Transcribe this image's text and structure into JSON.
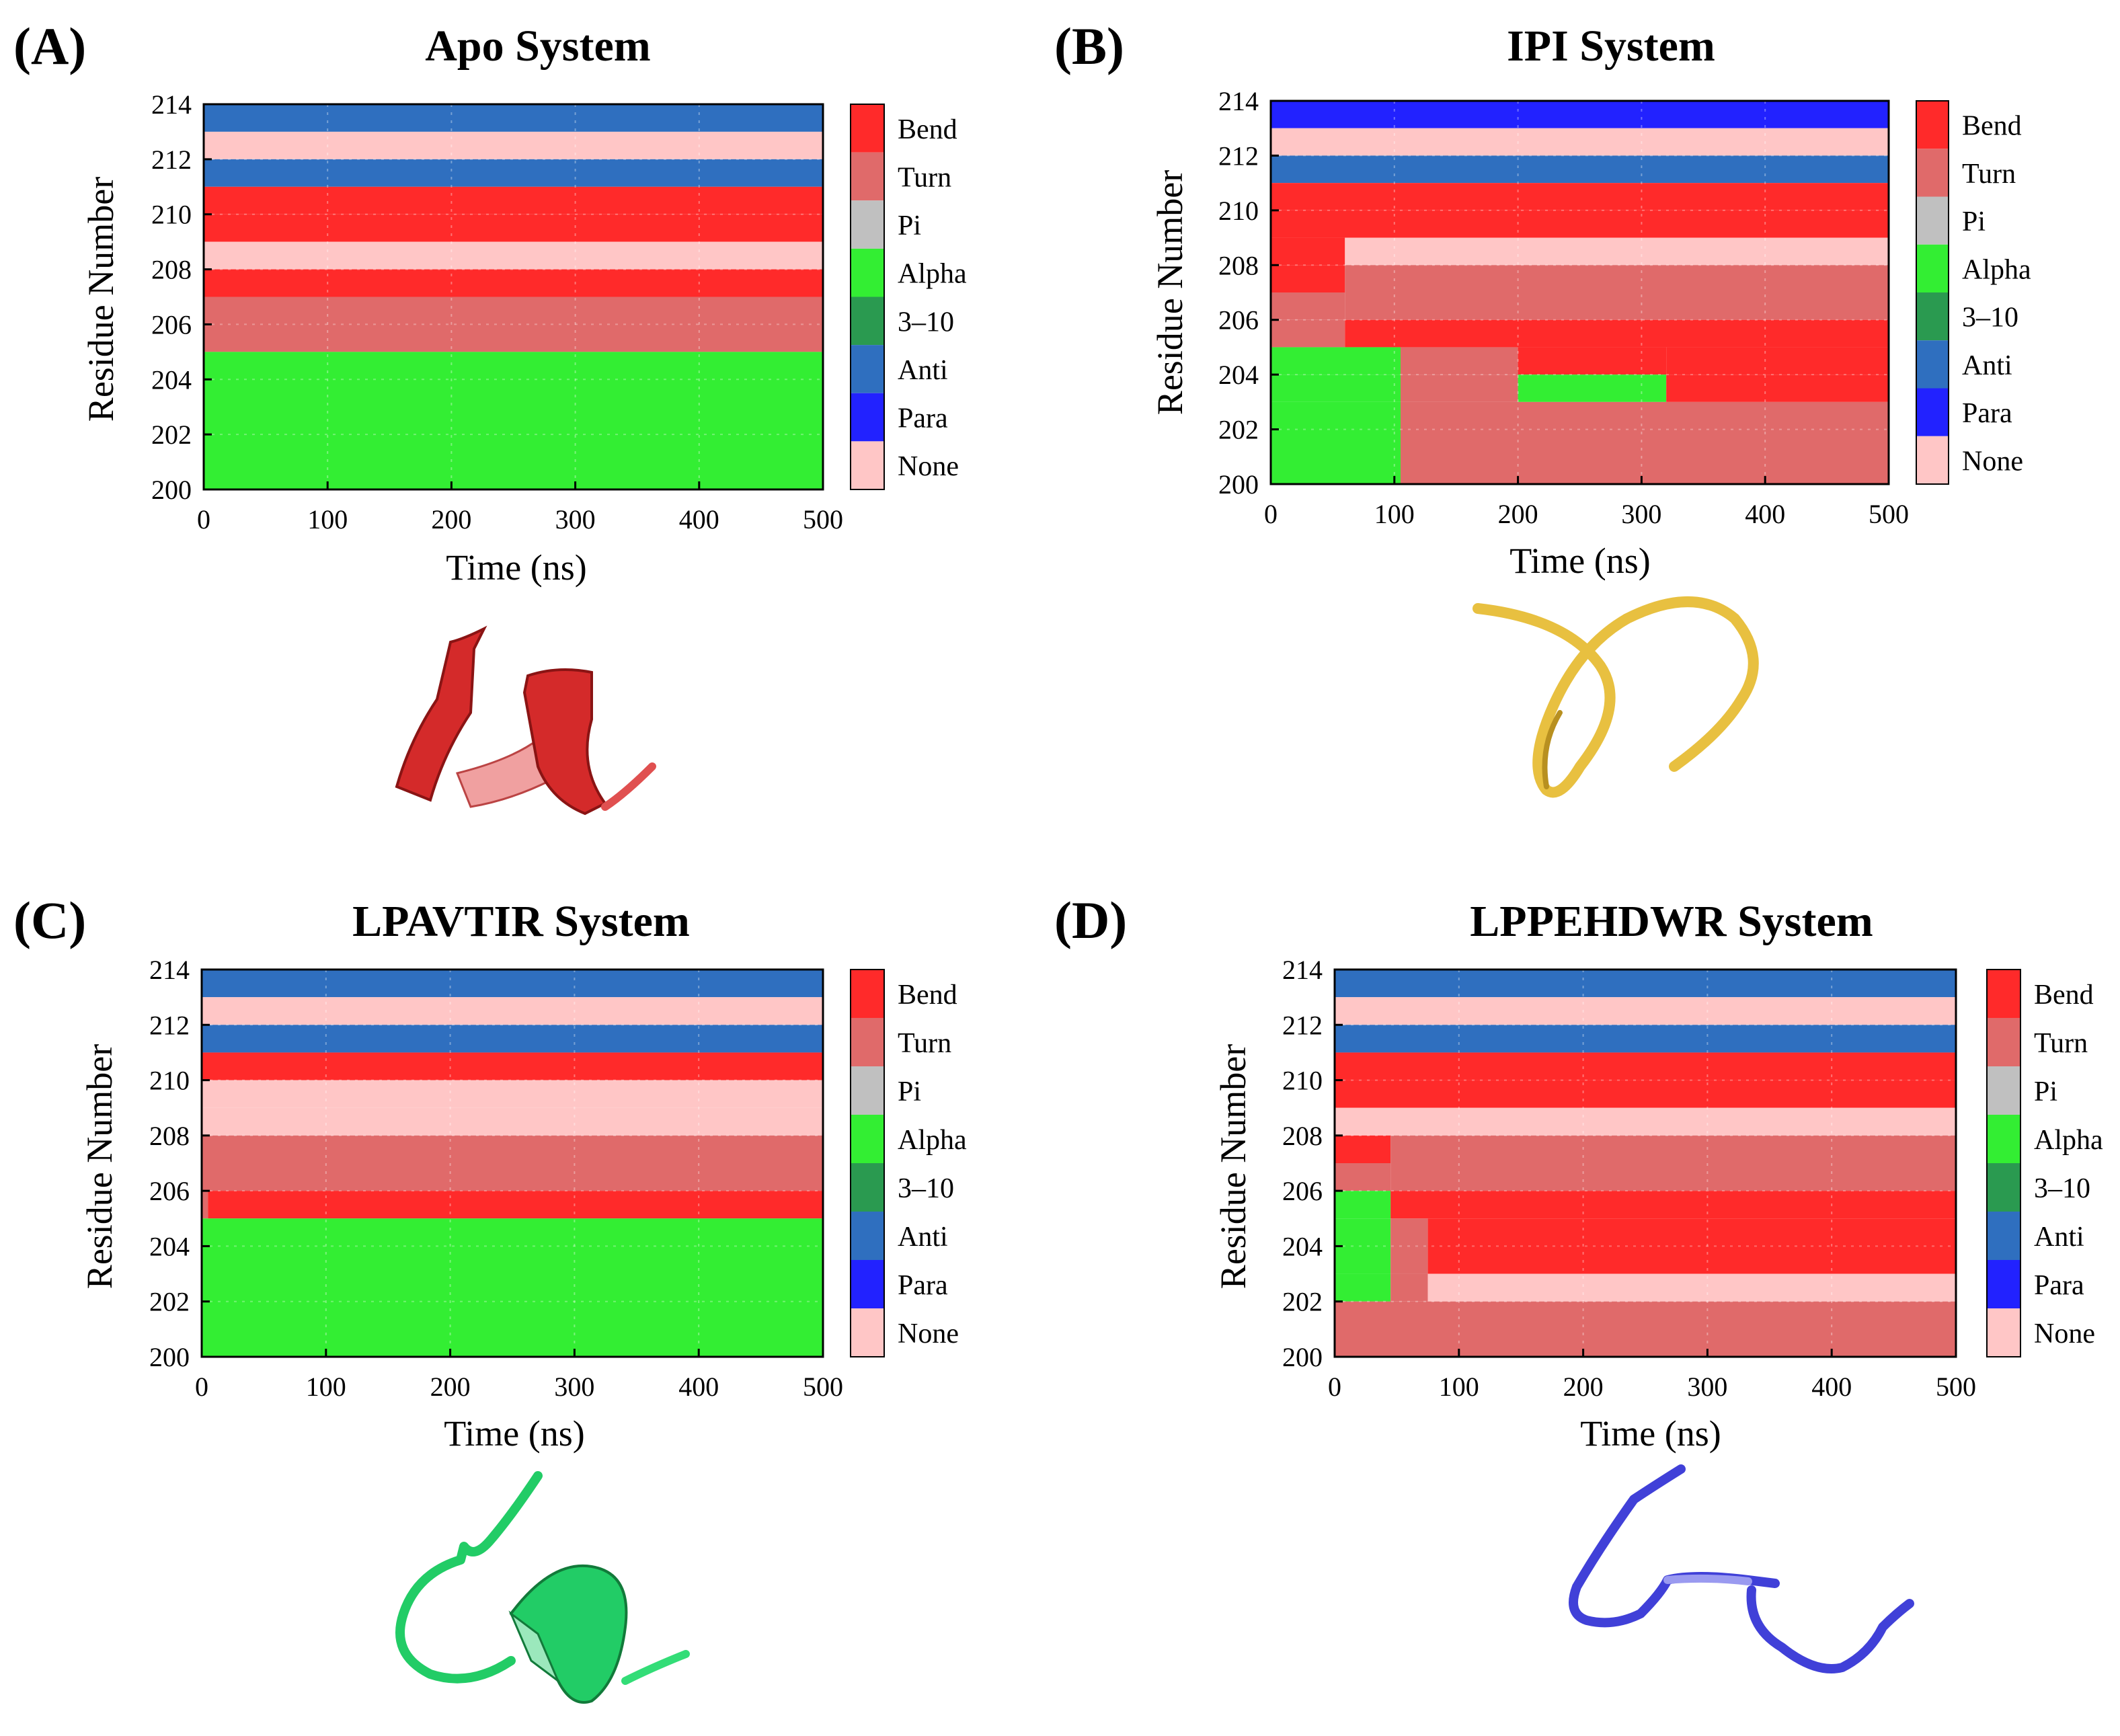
{
  "colors": {
    "Bend": "#ff2a2a",
    "Turn": "#e06a6a",
    "Pi": "#c0c0c0",
    "Alpha": "#33ee33",
    "3-10": "#2a9a50",
    "Anti": "#2f6fbf",
    "Para": "#2222ff",
    "None": "#ffc6c6"
  },
  "structures": {
    "A": {
      "name": "red helix cartoon",
      "color": "#d42a2a"
    },
    "B": {
      "name": "yellow coil cartoon",
      "color": "#e8c040"
    },
    "C": {
      "name": "green helix cartoon",
      "color": "#22cc66"
    },
    "D": {
      "name": "blue coil cartoon",
      "color": "#4040d8"
    }
  },
  "chart_data": [
    {
      "type": "heatmap",
      "panel_label": "(A)",
      "title": "Apo System",
      "xlabel": "Time (ns)",
      "ylabel": "Residue Number",
      "xlim": [
        0,
        500
      ],
      "ylim": [
        200,
        214
      ],
      "xticks": [
        0,
        100,
        200,
        300,
        400,
        500
      ],
      "yticks": [
        200,
        202,
        204,
        206,
        208,
        210,
        212,
        214
      ],
      "legend": [
        "Bend",
        "Turn",
        "Pi",
        "Alpha",
        "3–10",
        "Anti",
        "Para",
        "None"
      ],
      "legend_keys": [
        "Bend",
        "Turn",
        "Pi",
        "Alpha",
        "3-10",
        "Anti",
        "Para",
        "None"
      ],
      "rows": [
        {
          "r0": 213,
          "r1": 214,
          "segs": [
            [
              0,
              500,
              "Anti"
            ]
          ]
        },
        {
          "r0": 212,
          "r1": 213,
          "segs": [
            [
              0,
              500,
              "None"
            ]
          ]
        },
        {
          "r0": 211,
          "r1": 212,
          "segs": [
            [
              0,
              500,
              "Anti"
            ]
          ]
        },
        {
          "r0": 210,
          "r1": 211,
          "segs": [
            [
              0,
              500,
              "Bend"
            ]
          ]
        },
        {
          "r0": 209,
          "r1": 210,
          "segs": [
            [
              0,
              500,
              "Bend"
            ]
          ]
        },
        {
          "r0": 208,
          "r1": 209,
          "segs": [
            [
              0,
              500,
              "None"
            ]
          ]
        },
        {
          "r0": 207,
          "r1": 208,
          "segs": [
            [
              0,
              500,
              "Bend"
            ]
          ]
        },
        {
          "r0": 205,
          "r1": 207,
          "segs": [
            [
              0,
              500,
              "Turn"
            ]
          ]
        },
        {
          "r0": 200,
          "r1": 205,
          "segs": [
            [
              0,
              500,
              "Alpha"
            ]
          ]
        }
      ]
    },
    {
      "type": "heatmap",
      "panel_label": "(B)",
      "title": "IPI System",
      "xlabel": "Time (ns)",
      "ylabel": "Residue Number",
      "xlim": [
        0,
        500
      ],
      "ylim": [
        200,
        214
      ],
      "xticks": [
        0,
        100,
        200,
        300,
        400,
        500
      ],
      "yticks": [
        200,
        202,
        204,
        206,
        208,
        210,
        212,
        214
      ],
      "legend": [
        "Bend",
        "Turn",
        "Pi",
        "Alpha",
        "3–10",
        "Anti",
        "Para",
        "None"
      ],
      "legend_keys": [
        "Bend",
        "Turn",
        "Pi",
        "Alpha",
        "3-10",
        "Anti",
        "Para",
        "None"
      ],
      "rows": [
        {
          "r0": 213,
          "r1": 214,
          "segs": [
            [
              0,
              500,
              "Para"
            ]
          ]
        },
        {
          "r0": 212,
          "r1": 213,
          "segs": [
            [
              0,
              500,
              "None"
            ]
          ]
        },
        {
          "r0": 211,
          "r1": 212,
          "segs": [
            [
              0,
              500,
              "Anti"
            ]
          ]
        },
        {
          "r0": 210,
          "r1": 211,
          "segs": [
            [
              0,
              500,
              "Bend"
            ]
          ]
        },
        {
          "r0": 209,
          "r1": 210,
          "segs": [
            [
              0,
              500,
              "Bend"
            ]
          ]
        },
        {
          "r0": 208,
          "r1": 209,
          "segs": [
            [
              0,
              60,
              "Bend"
            ],
            [
              60,
              500,
              "None"
            ]
          ]
        },
        {
          "r0": 207,
          "r1": 208,
          "segs": [
            [
              0,
              60,
              "Bend"
            ],
            [
              60,
              500,
              "Turn"
            ]
          ]
        },
        {
          "r0": 206,
          "r1": 207,
          "segs": [
            [
              0,
              60,
              "Turn"
            ],
            [
              60,
              500,
              "Turn"
            ]
          ]
        },
        {
          "r0": 205,
          "r1": 206,
          "segs": [
            [
              0,
              60,
              "Turn"
            ],
            [
              60,
              500,
              "Bend"
            ]
          ]
        },
        {
          "r0": 204,
          "r1": 205,
          "segs": [
            [
              0,
              105,
              "Alpha"
            ],
            [
              105,
              200,
              "Turn"
            ],
            [
              200,
              320,
              "Bend"
            ],
            [
              320,
              500,
              "Bend"
            ]
          ]
        },
        {
          "r0": 203,
          "r1": 204,
          "segs": [
            [
              0,
              105,
              "Alpha"
            ],
            [
              105,
              200,
              "Turn"
            ],
            [
              200,
              320,
              "Alpha"
            ],
            [
              320,
              500,
              "Bend"
            ]
          ]
        },
        {
          "r0": 200,
          "r1": 203,
          "segs": [
            [
              0,
              105,
              "Alpha"
            ],
            [
              105,
              500,
              "Turn"
            ]
          ]
        }
      ]
    },
    {
      "type": "heatmap",
      "panel_label": "(C)",
      "title": "LPAVTIR System",
      "xlabel": "Time (ns)",
      "ylabel": "Residue Number",
      "xlim": [
        0,
        500
      ],
      "ylim": [
        200,
        214
      ],
      "xticks": [
        0,
        100,
        200,
        300,
        400,
        500
      ],
      "yticks": [
        200,
        202,
        204,
        206,
        208,
        210,
        212,
        214
      ],
      "legend": [
        "Bend",
        "Turn",
        "Pi",
        "Alpha",
        "3–10",
        "Anti",
        "Para",
        "None"
      ],
      "legend_keys": [
        "Bend",
        "Turn",
        "Pi",
        "Alpha",
        "3-10",
        "Anti",
        "Para",
        "None"
      ],
      "rows": [
        {
          "r0": 213,
          "r1": 214,
          "segs": [
            [
              0,
              500,
              "Anti"
            ]
          ]
        },
        {
          "r0": 212,
          "r1": 213,
          "segs": [
            [
              0,
              500,
              "None"
            ]
          ]
        },
        {
          "r0": 211,
          "r1": 212,
          "segs": [
            [
              0,
              500,
              "Anti"
            ]
          ]
        },
        {
          "r0": 210,
          "r1": 211,
          "segs": [
            [
              0,
              500,
              "Bend"
            ]
          ]
        },
        {
          "r0": 209,
          "r1": 210,
          "segs": [
            [
              0,
              500,
              "None"
            ]
          ]
        },
        {
          "r0": 208,
          "r1": 209,
          "segs": [
            [
              0,
              500,
              "None"
            ]
          ]
        },
        {
          "r0": 206,
          "r1": 208,
          "segs": [
            [
              0,
              500,
              "Turn"
            ]
          ]
        },
        {
          "r0": 205,
          "r1": 206,
          "segs": [
            [
              0,
              5,
              "Turn"
            ],
            [
              5,
              500,
              "Bend"
            ]
          ]
        },
        {
          "r0": 200,
          "r1": 205,
          "segs": [
            [
              0,
              500,
              "Alpha"
            ]
          ]
        }
      ]
    },
    {
      "type": "heatmap",
      "panel_label": "(D)",
      "title": "LPPEHDWR System",
      "xlabel": "Time (ns)",
      "ylabel": "Residue Number",
      "xlim": [
        0,
        500
      ],
      "ylim": [
        200,
        214
      ],
      "xticks": [
        0,
        100,
        200,
        300,
        400,
        500
      ],
      "yticks": [
        200,
        202,
        204,
        206,
        208,
        210,
        212,
        214
      ],
      "legend": [
        "Bend",
        "Turn",
        "Pi",
        "Alpha",
        "3–10",
        "Anti",
        "Para",
        "None"
      ],
      "legend_keys": [
        "Bend",
        "Turn",
        "Pi",
        "Alpha",
        "3-10",
        "Anti",
        "Para",
        "None"
      ],
      "rows": [
        {
          "r0": 213,
          "r1": 214,
          "segs": [
            [
              0,
              500,
              "Anti"
            ]
          ]
        },
        {
          "r0": 212,
          "r1": 213,
          "segs": [
            [
              0,
              500,
              "None"
            ]
          ]
        },
        {
          "r0": 211,
          "r1": 212,
          "segs": [
            [
              0,
              500,
              "Anti"
            ]
          ]
        },
        {
          "r0": 210,
          "r1": 211,
          "segs": [
            [
              0,
              500,
              "Bend"
            ]
          ]
        },
        {
          "r0": 209,
          "r1": 210,
          "segs": [
            [
              0,
              500,
              "Bend"
            ]
          ]
        },
        {
          "r0": 208,
          "r1": 209,
          "segs": [
            [
              0,
              500,
              "None"
            ]
          ]
        },
        {
          "r0": 207,
          "r1": 208,
          "segs": [
            [
              0,
              45,
              "Bend"
            ],
            [
              45,
              500,
              "Turn"
            ]
          ]
        },
        {
          "r0": 206,
          "r1": 207,
          "segs": [
            [
              0,
              45,
              "Turn"
            ],
            [
              45,
              500,
              "Turn"
            ]
          ]
        },
        {
          "r0": 205,
          "r1": 206,
          "segs": [
            [
              0,
              45,
              "Alpha"
            ],
            [
              45,
              500,
              "Bend"
            ]
          ]
        },
        {
          "r0": 203,
          "r1": 205,
          "segs": [
            [
              0,
              45,
              "Alpha"
            ],
            [
              45,
              75,
              "Turn"
            ],
            [
              75,
              500,
              "Bend"
            ]
          ]
        },
        {
          "r0": 202,
          "r1": 203,
          "segs": [
            [
              0,
              45,
              "Alpha"
            ],
            [
              45,
              75,
              "Turn"
            ],
            [
              75,
              500,
              "None"
            ]
          ]
        },
        {
          "r0": 200,
          "r1": 202,
          "segs": [
            [
              0,
              500,
              "Turn"
            ]
          ]
        }
      ]
    }
  ]
}
